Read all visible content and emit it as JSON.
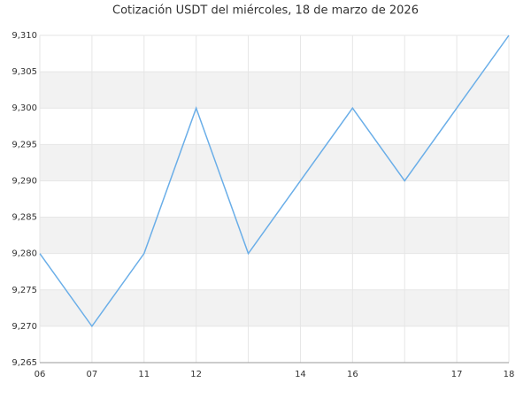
{
  "chart_data": {
    "type": "line",
    "title": "Cotización USDT del miércoles, 18 de marzo de 2026",
    "categories": [
      "06",
      "07",
      "11",
      "12",
      null,
      "14",
      "16",
      null,
      "17",
      "18"
    ],
    "series": [
      {
        "name": "USDT",
        "color": "#6aaee8",
        "values": [
          9.28,
          9.27,
          9.28,
          9.3,
          9.28,
          9.29,
          9.3,
          9.29,
          9.3,
          9.31
        ]
      }
    ],
    "ylim": [
      9.265,
      9.31
    ],
    "yticks": [
      {
        "value": 9.265,
        "label": "9,265"
      },
      {
        "value": 9.27,
        "label": "9,270"
      },
      {
        "value": 9.275,
        "label": "9,275"
      },
      {
        "value": 9.28,
        "label": "9,280"
      },
      {
        "value": 9.285,
        "label": "9,285"
      },
      {
        "value": 9.29,
        "label": "9,290"
      },
      {
        "value": 9.295,
        "label": "9,295"
      },
      {
        "value": 9.3,
        "label": "9,300"
      },
      {
        "value": 9.305,
        "label": "9,305"
      },
      {
        "value": 9.31,
        "label": "9,310"
      }
    ],
    "grid": true,
    "bands": true
  }
}
